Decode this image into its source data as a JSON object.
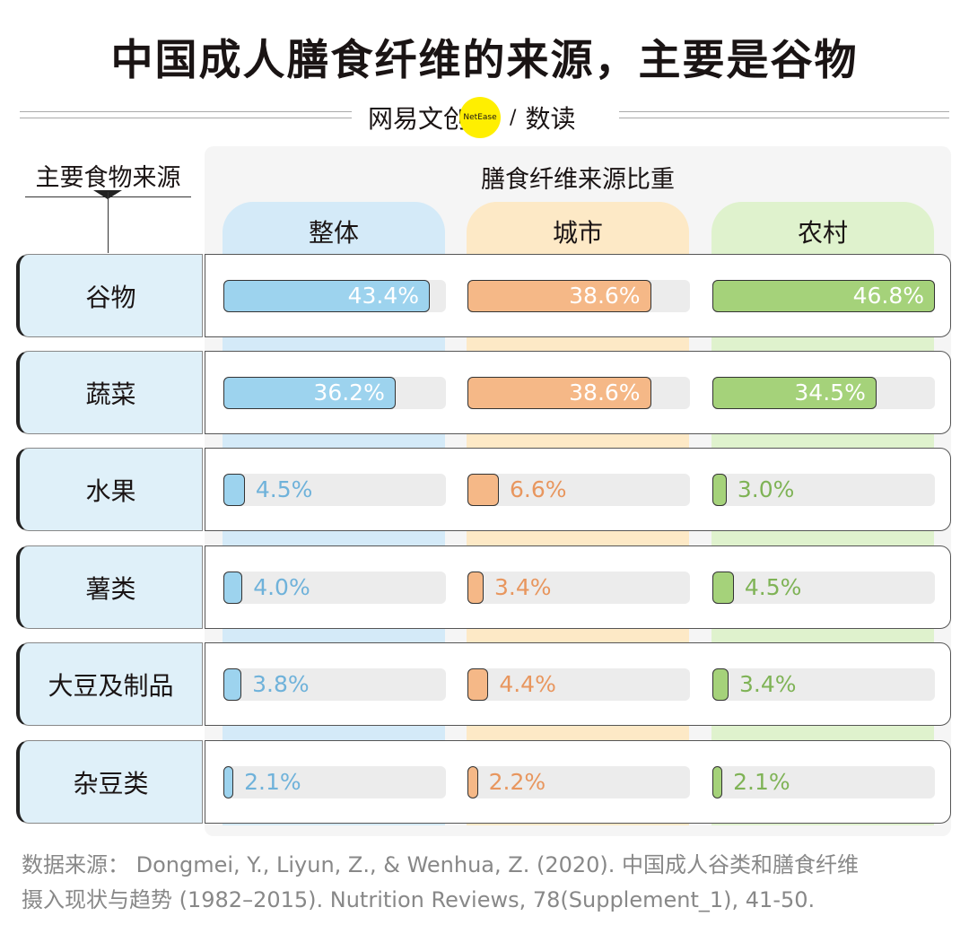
{
  "title": "中国成人膳食纤维的来源，主要是谷物",
  "brand": {
    "name": "网易文创",
    "badge": "NetEase",
    "sep": "/",
    "column": "数读"
  },
  "chart_data": {
    "type": "bar",
    "row_header": "主要食物来源",
    "title": "膳食纤维来源比重",
    "categories": [
      "谷物",
      "蔬菜",
      "水果",
      "薯类",
      "大豆及制品",
      "杂豆类"
    ],
    "series": [
      {
        "name": "整体",
        "values": [
          43.4,
          36.2,
          4.5,
          4.0,
          3.8,
          2.1
        ],
        "color": "#9dd3ee",
        "bg": "#d4eaf8",
        "label_color": "#6fb2da"
      },
      {
        "name": "城市",
        "values": [
          38.6,
          38.6,
          6.6,
          3.4,
          4.4,
          2.2
        ],
        "color": "#f5b887",
        "bg": "#fde9c6",
        "label_color": "#e8965e"
      },
      {
        "name": "农村",
        "values": [
          46.8,
          34.5,
          3.0,
          4.5,
          3.4,
          2.1
        ],
        "color": "#a5d27a",
        "bg": "#dff2cd",
        "label_color": "#7fb356"
      }
    ],
    "unit": "%",
    "xlim": [
      0,
      46.8
    ]
  },
  "footnote": [
    "数据来源： Dongmei, Y., Liyun, Z., & Wenhua, Z. (2020). 中国成人谷类和膳食纤维",
    "摄入现状与趋势 (1982–2015). Nutrition Reviews, 78(Supplement_1), 41-50."
  ]
}
